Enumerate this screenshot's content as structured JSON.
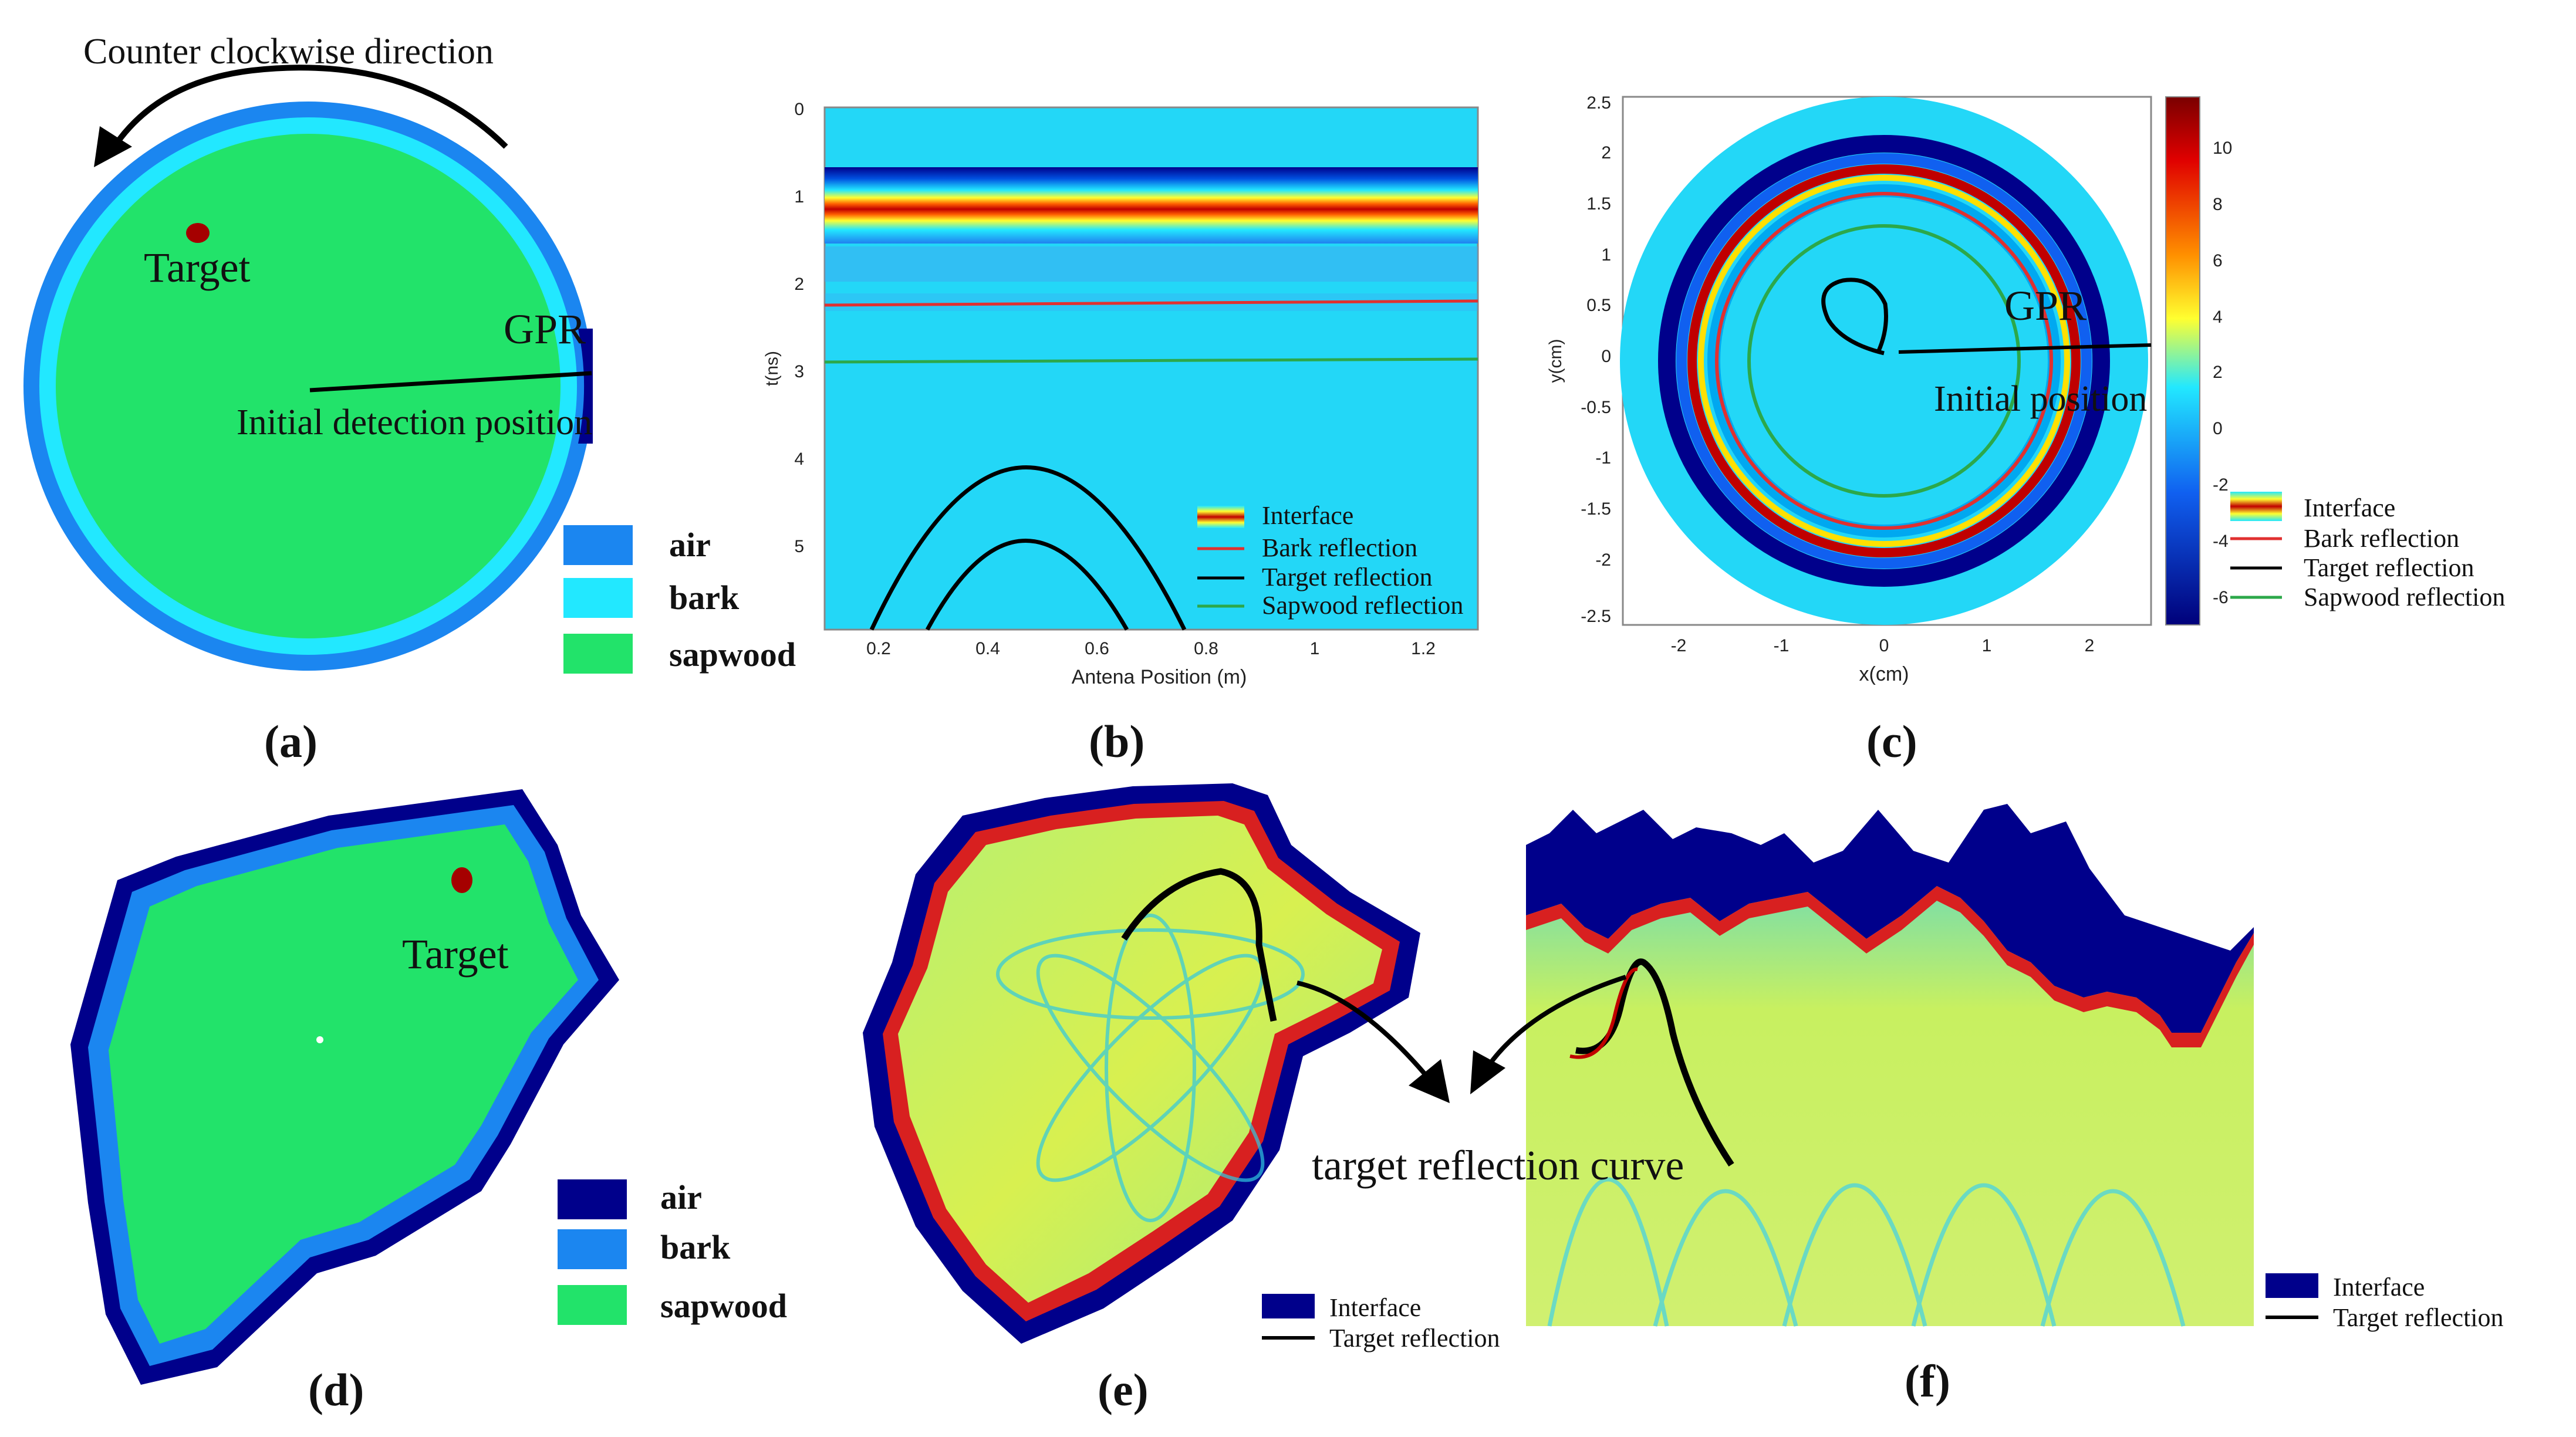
{
  "colors": {
    "air_dark": "#00008b",
    "air_blue": "#1b86f0",
    "bark_cyan": "#22e8ff",
    "sapwood_green": "#22e36a",
    "target_red": "#a50000",
    "field_cyan": "#23d7f7",
    "bark_reflection": "#e03030",
    "target_reflection": "#000000",
    "sapwood_reflection": "#2ca84a"
  },
  "panel_a": {
    "label": "(a)",
    "arrow_caption": "Counter clockwise direction",
    "target_label": "Target",
    "gpr_label": "GPR",
    "start_label": "Initial detection position",
    "legend": [
      {
        "label": "air",
        "color": "#1b86f0"
      },
      {
        "label": "bark",
        "color": "#22e8ff"
      },
      {
        "label": "sapwood",
        "color": "#22e36a"
      }
    ]
  },
  "panel_b": {
    "label": "(b)",
    "xlabel": "Antena Position (m)",
    "ylabel": "t(ns)",
    "x_ticks": [
      "0.2",
      "0.4",
      "0.6",
      "0.8",
      "1",
      "1.2"
    ],
    "y_ticks": [
      "0",
      "1",
      "2",
      "3",
      "4",
      "5"
    ],
    "legend": [
      "Interface",
      "Bark reflection",
      "Target reflection",
      "Sapwood reflection"
    ]
  },
  "panel_c": {
    "label": "(c)",
    "xlabel": "x(cm)",
    "ylabel": "y(cm)",
    "x_ticks": [
      "-2",
      "-1",
      "0",
      "1",
      "2"
    ],
    "y_ticks": [
      "2.5",
      "2",
      "1.5",
      "1",
      "0.5",
      "0",
      "-0.5",
      "-1",
      "-1.5",
      "-2",
      "-2.5"
    ],
    "colorbar_ticks": [
      "10",
      "8",
      "6",
      "4",
      "2",
      "0",
      "-2",
      "-4",
      "-6"
    ],
    "gpr_label": "GPR",
    "start_label": "Initial position",
    "legend": [
      "Interface",
      "Bark reflection",
      "Target reflection",
      "Sapwood reflection"
    ]
  },
  "panel_d": {
    "label": "(d)",
    "target_label": "Target",
    "legend": [
      {
        "label": "air",
        "color": "#00008b"
      },
      {
        "label": "bark",
        "color": "#1b86f0"
      },
      {
        "label": "sapwood",
        "color": "#22e36a"
      }
    ]
  },
  "panel_e": {
    "label": "(e)",
    "legend": [
      "Interface",
      "Target reflection"
    ]
  },
  "panel_f": {
    "label": "(f)",
    "legend": [
      "Interface",
      "Target reflection"
    ]
  },
  "shared": {
    "curve_label": "target reflection curve"
  }
}
